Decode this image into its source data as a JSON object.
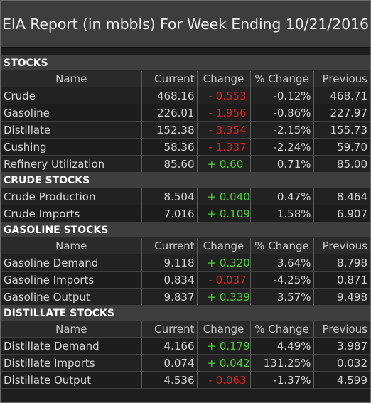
{
  "title": "EIA Report (in mbbls) For Week Ending 10/21/2016",
  "columns": {
    "name": "Name",
    "current": "Current",
    "change": "Change",
    "pct_change": "% Change",
    "previous": "Previous"
  },
  "colors": {
    "negative": "#e02020",
    "positive": "#4bd133",
    "section_bg": "#3e3e3e",
    "title_bg": "#3d3d3d"
  },
  "sections": {
    "stocks": {
      "label": "STOCKS",
      "rows": [
        {
          "name": "Crude",
          "current": "468.16",
          "change": "- 0.553",
          "pct": "-0.12%",
          "previous": "468.71"
        },
        {
          "name": "Gasoline",
          "current": "226.01",
          "change": "- 1.956",
          "pct": "-0.86%",
          "previous": "227.97"
        },
        {
          "name": "Distillate",
          "current": "152.38",
          "change": "- 3.354",
          "pct": "-2.15%",
          "previous": "155.73"
        },
        {
          "name": "Cushing",
          "current": "58.36",
          "change": "- 1.337",
          "pct": "-2.24%",
          "previous": "59.70"
        },
        {
          "name": "Refinery Utilization",
          "current": "85.60",
          "change": "+ 0.60",
          "pct": "0.71%",
          "previous": "85.00"
        }
      ]
    },
    "crude_stocks": {
      "label": "CRUDE STOCKS",
      "rows": [
        {
          "name": "Crude Production",
          "current": "8.504",
          "change": "+ 0.040",
          "pct": "0.47%",
          "previous": "8.464"
        },
        {
          "name": "Crude Imports",
          "current": "7.016",
          "change": "+ 0.109",
          "pct": "1.58%",
          "previous": "6.907"
        }
      ]
    },
    "gasoline_stocks": {
      "label": "GASOLINE STOCKS",
      "rows": [
        {
          "name": "Gasoline Demand",
          "current": "9.118",
          "change": "+ 0.320",
          "pct": "3.64%",
          "previous": "8.798"
        },
        {
          "name": "Gasoline Imports",
          "current": "0.834",
          "change": "- 0.037",
          "pct": "-4.25%",
          "previous": "0.871"
        },
        {
          "name": "Gasoline Output",
          "current": "9.837",
          "change": "+ 0.339",
          "pct": "3.57%",
          "previous": "9.498"
        }
      ]
    },
    "distillate_stocks": {
      "label": "DISTILLATE STOCKS",
      "rows": [
        {
          "name": "Distillate Demand",
          "current": "4.166",
          "change": "+ 0.179",
          "pct": "4.49%",
          "previous": "3.987"
        },
        {
          "name": "Distillate Imports",
          "current": "0.074",
          "change": "+ 0.042",
          "pct": "131.25%",
          "previous": "0.032"
        },
        {
          "name": "Distillate Output",
          "current": "4.536",
          "change": "- 0.063",
          "pct": "-1.37%",
          "previous": "4.599"
        }
      ]
    }
  }
}
